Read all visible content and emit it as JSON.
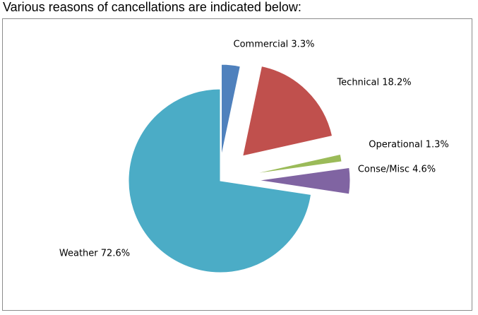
{
  "heading": "Various reasons of cancellations are indicated below:",
  "chart_data": {
    "type": "pie",
    "title": "",
    "exploded": true,
    "legend": "none",
    "start": "12 o'clock, clockwise",
    "slices": [
      {
        "name": "Commercial",
        "value": 3.3,
        "label": "Commercial 3.3%",
        "color": "#4f81bd"
      },
      {
        "name": "Technical",
        "value": 18.2,
        "label": "Technical 18.2%",
        "color": "#c0504d"
      },
      {
        "name": "Operational",
        "value": 1.3,
        "label": "Operational 1.3%",
        "color": "#9bbb59"
      },
      {
        "name": "Conse/Misc",
        "value": 4.6,
        "label": "Conse/Misc 4.6%",
        "color": "#8064a2"
      },
      {
        "name": "Weather",
        "value": 72.6,
        "label": "Weather 72.6%",
        "color": "#4bacc6"
      }
    ]
  }
}
